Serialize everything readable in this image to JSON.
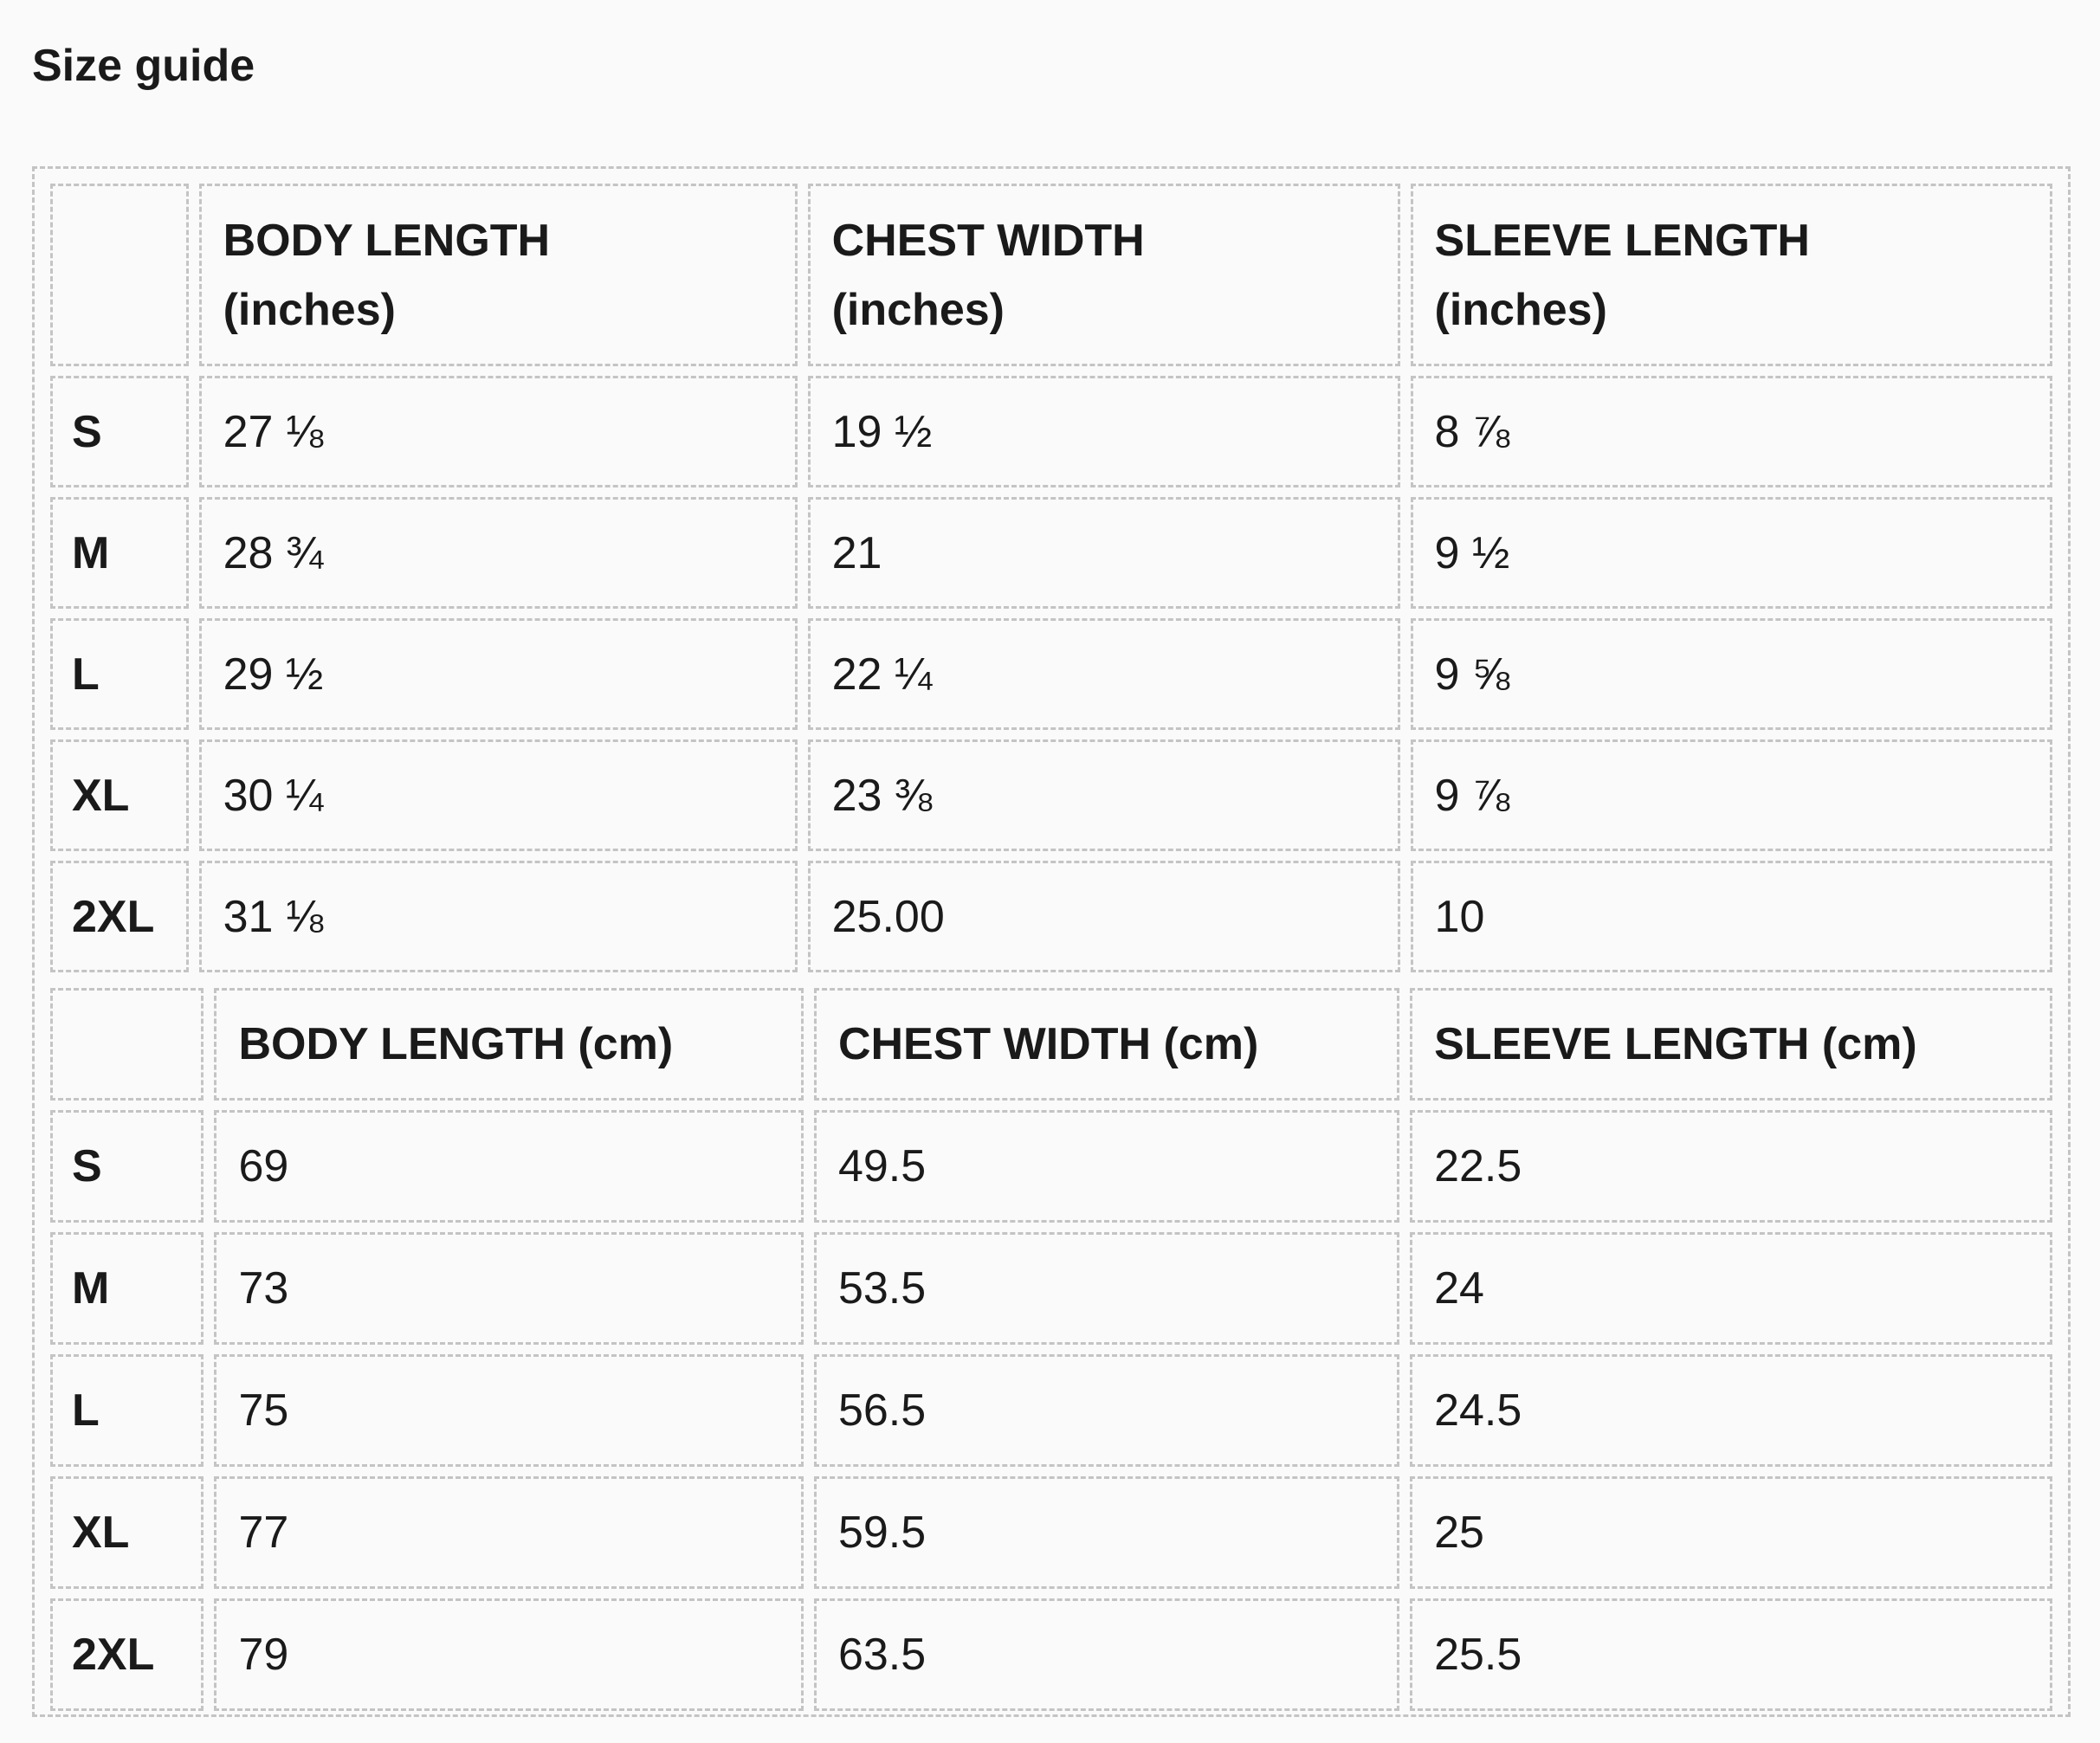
{
  "title": "Size guide",
  "inches": {
    "headers": [
      "",
      "BODY LENGTH (inches)",
      "CHEST WIDTH (inches)",
      "SLEEVE LENGTH (inches)"
    ],
    "rows": [
      [
        "S",
        "27 ⅛",
        "19 ½",
        "8 ⅞"
      ],
      [
        "M",
        "28 ¾",
        "21",
        "9 ½"
      ],
      [
        "L",
        "29 ½",
        "22 ¼",
        "9 ⅝"
      ],
      [
        "XL",
        "30 ¼",
        "23 ⅜",
        "9 ⅞"
      ],
      [
        "2XL",
        "31 ⅛",
        "25.00",
        "10"
      ]
    ]
  },
  "cm": {
    "headers": [
      "",
      "BODY LENGTH (cm)",
      "CHEST WIDTH (cm)",
      "SLEEVE LENGTH (cm)"
    ],
    "rows": [
      [
        "S",
        "69",
        "49.5",
        "22.5"
      ],
      [
        "M",
        "73",
        "53.5",
        "24"
      ],
      [
        "L",
        "75",
        "56.5",
        "24.5"
      ],
      [
        "XL",
        "77",
        "59.5",
        "25"
      ],
      [
        "2XL",
        "79",
        "63.5",
        "25.5"
      ]
    ]
  }
}
